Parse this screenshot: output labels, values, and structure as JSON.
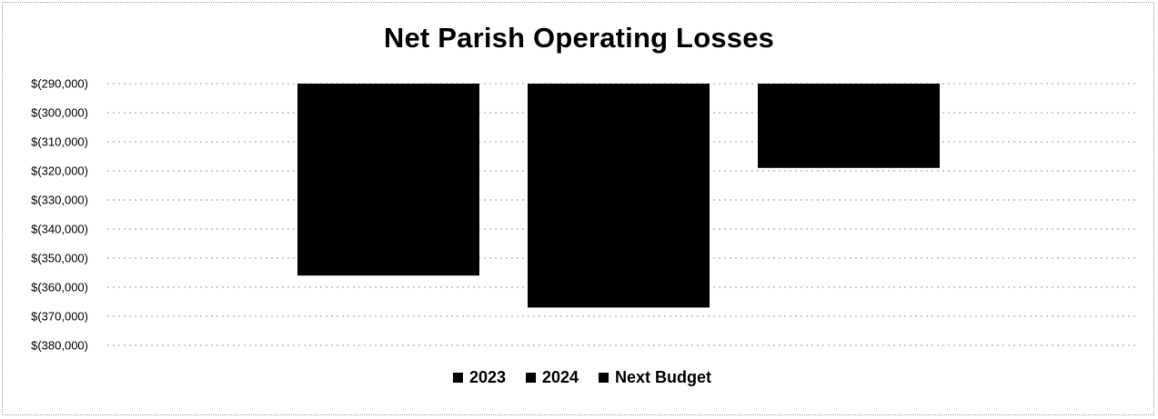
{
  "chart_data": {
    "type": "bar",
    "title": "Net Parish Operating Losses",
    "xlabel": "",
    "ylabel": "",
    "categories": [
      ""
    ],
    "series": [
      {
        "name": "2023",
        "values": [
          -356000
        ],
        "color": "#000000"
      },
      {
        "name": "2024",
        "values": [
          -367000
        ],
        "color": "#000000"
      },
      {
        "name": "Next Budget",
        "values": [
          -319000
        ],
        "color": "#000000"
      }
    ],
    "ylim": [
      -380000,
      -290000
    ],
    "yticks": [
      -290000,
      -300000,
      -310000,
      -320000,
      -330000,
      -340000,
      -350000,
      -360000,
      -370000,
      -380000
    ],
    "ytick_labels": [
      "$(290,000)",
      "$(300,000)",
      "$(310,000)",
      "$(320,000)",
      "$(330,000)",
      "$(340,000)",
      "$(350,000)",
      "$(360,000)",
      "$(370,000)",
      "$(380,000)"
    ],
    "grid": true,
    "legend": {
      "position": "bottom",
      "entries": [
        "2023",
        "2024",
        "Next Budget"
      ]
    }
  }
}
